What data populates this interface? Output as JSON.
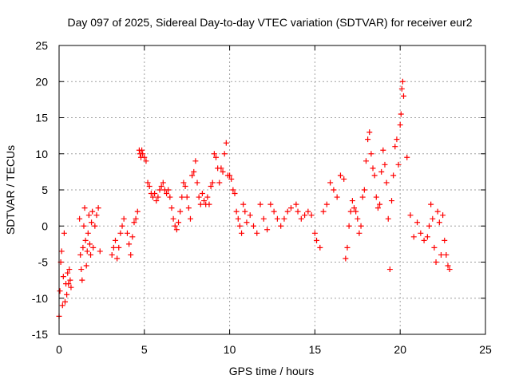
{
  "chart_data": {
    "type": "scatter",
    "title": "Day 097 of 2025, Sidereal Day-to-day VTEC variation (SDTVAR) for receiver eur2",
    "xlabel": "GPS time / hours",
    "ylabel": "SDTVAR / TECUs",
    "xlim": [
      0,
      25
    ],
    "ylim": [
      -15,
      25
    ],
    "xticks": [
      0,
      5,
      10,
      15,
      20,
      25
    ],
    "yticks": [
      -15,
      -10,
      -5,
      0,
      5,
      10,
      15,
      20,
      25
    ],
    "xtick_labels": [
      "0",
      "5",
      "10",
      "15",
      "20",
      "25"
    ],
    "ytick_labels": [
      "-15",
      "-10",
      "-5",
      "0",
      "5",
      "10",
      "15",
      "20",
      "25"
    ],
    "grid": true,
    "marker": "plus",
    "color": "#ff0000",
    "series": [
      {
        "name": "SDTVAR",
        "x": [
          0.0,
          0.05,
          0.1,
          0.15,
          0.2,
          0.25,
          0.3,
          0.35,
          0.4,
          0.45,
          0.5,
          0.55,
          0.6,
          0.65,
          0.7,
          1.2,
          1.25,
          1.3,
          1.35,
          1.4,
          1.45,
          1.5,
          1.55,
          1.6,
          1.65,
          1.7,
          1.75,
          1.8,
          1.85,
          1.9,
          1.95,
          2.0,
          2.1,
          2.2,
          2.3,
          2.4,
          3.1,
          3.2,
          3.3,
          3.4,
          3.5,
          3.6,
          3.7,
          3.8,
          4.0,
          4.1,
          4.2,
          4.3,
          4.4,
          4.5,
          4.6,
          4.7,
          4.75,
          4.8,
          4.85,
          4.9,
          5.0,
          5.1,
          5.2,
          5.3,
          5.4,
          5.5,
          5.6,
          5.7,
          5.8,
          5.9,
          6.0,
          6.1,
          6.2,
          6.3,
          6.4,
          6.5,
          6.6,
          6.7,
          6.8,
          6.9,
          7.0,
          7.1,
          7.2,
          7.3,
          7.4,
          7.5,
          7.6,
          7.7,
          7.8,
          7.9,
          8.0,
          8.1,
          8.2,
          8.3,
          8.4,
          8.5,
          8.6,
          8.7,
          8.8,
          8.9,
          9.0,
          9.1,
          9.2,
          9.3,
          9.4,
          9.5,
          9.6,
          9.7,
          9.8,
          9.9,
          10.0,
          10.1,
          10.2,
          10.3,
          10.4,
          10.5,
          10.6,
          10.7,
          10.8,
          10.9,
          11.0,
          11.2,
          11.4,
          11.6,
          11.8,
          12.0,
          12.2,
          12.4,
          12.6,
          12.8,
          13.0,
          13.2,
          13.4,
          13.6,
          13.9,
          14.0,
          14.2,
          14.4,
          14.6,
          14.8,
          15.0,
          15.1,
          15.3,
          15.5,
          15.7,
          15.9,
          16.1,
          16.3,
          16.5,
          16.7,
          16.8,
          16.9,
          17.0,
          17.1,
          17.2,
          17.3,
          17.4,
          17.5,
          17.6,
          17.7,
          17.8,
          17.9,
          18.0,
          18.1,
          18.2,
          18.3,
          18.4,
          18.5,
          18.6,
          18.7,
          18.8,
          18.9,
          19.0,
          19.1,
          19.2,
          19.3,
          19.4,
          19.5,
          19.6,
          19.7,
          19.8,
          19.9,
          20.0,
          20.05,
          20.1,
          20.15,
          20.2,
          20.4,
          20.6,
          20.8,
          21.0,
          21.2,
          21.4,
          21.6,
          21.7,
          21.8,
          21.9,
          22.0,
          22.1,
          22.2,
          22.3,
          22.4,
          22.5,
          22.6,
          22.7,
          22.8,
          22.9
        ],
        "y": [
          -12.5,
          -9.0,
          -5.0,
          -3.5,
          -11.0,
          -7.0,
          -1.0,
          -10.5,
          -8.0,
          -9.5,
          -6.5,
          -8.0,
          -6.0,
          -7.5,
          -8.5,
          1.0,
          -4.0,
          -6.0,
          -7.5,
          -3.0,
          0.0,
          2.5,
          -2.0,
          -5.5,
          -3.5,
          -1.0,
          1.5,
          -2.5,
          -4.0,
          0.5,
          2.0,
          -3.0,
          0.0,
          1.5,
          2.5,
          -3.5,
          -4.0,
          -3.0,
          -2.0,
          -4.5,
          -3.0,
          -1.0,
          0.0,
          1.0,
          -1.0,
          -2.5,
          -4.0,
          -1.5,
          0.5,
          1.0,
          2.0,
          10.5,
          10.0,
          9.5,
          10.5,
          10.0,
          9.5,
          9.0,
          6.0,
          5.5,
          4.5,
          4.0,
          4.5,
          3.5,
          4.0,
          5.0,
          5.5,
          6.0,
          5.0,
          4.5,
          5.0,
          4.0,
          2.5,
          1.0,
          0.0,
          -0.5,
          0.5,
          2.0,
          4.0,
          6.0,
          5.5,
          4.0,
          2.5,
          1.0,
          7.0,
          7.5,
          9.0,
          6.0,
          4.0,
          3.0,
          4.5,
          3.5,
          3.0,
          4.0,
          3.0,
          5.5,
          6.0,
          10.0,
          9.5,
          8.0,
          6.0,
          8.0,
          7.5,
          10.0,
          11.5,
          7.0,
          7.0,
          6.5,
          5.0,
          4.5,
          2.0,
          1.0,
          0.0,
          -1.0,
          3.0,
          2.0,
          0.5,
          1.5,
          0.0,
          -1.0,
          3.0,
          1.0,
          -0.5,
          3.0,
          2.0,
          1.0,
          0.0,
          1.0,
          2.0,
          2.5,
          3.0,
          2.0,
          1.0,
          1.5,
          2.0,
          1.5,
          -1.0,
          -2.0,
          -3.0,
          2.0,
          3.0,
          6.0,
          5.0,
          4.0,
          7.0,
          6.5,
          -4.5,
          -3.0,
          0.0,
          2.0,
          3.5,
          2.5,
          2.0,
          1.0,
          -1.0,
          0.0,
          4.0,
          5.0,
          9.0,
          12.0,
          13.0,
          10.0,
          8.0,
          7.0,
          4.0,
          2.5,
          3.0,
          7.5,
          10.5,
          8.5,
          6.0,
          1.0,
          -6.0,
          3.5,
          7.0,
          11.0,
          12.0,
          8.5,
          14.0,
          15.5,
          19.0,
          20.0,
          18.0,
          9.5,
          1.5,
          -1.5,
          0.5,
          -1.0,
          -2.0,
          -1.5,
          0.0,
          3.0,
          1.0,
          -3.0,
          -5.0,
          2.0,
          0.5,
          -4.0,
          1.5,
          -2.0,
          -4.0,
          -5.5,
          -6.0
        ]
      }
    ]
  }
}
